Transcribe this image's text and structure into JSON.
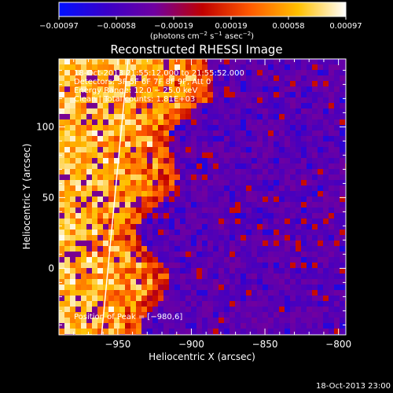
{
  "chart_data": {
    "type": "heatmap",
    "title": "Reconstructed RHESSI Image",
    "xlabel": "Heliocentric X (arcsec)",
    "ylabel": "Heliocentric Y (arcsec)",
    "xlim": [
      -990,
      -795
    ],
    "ylim": [
      -47,
      148
    ],
    "x_ticks": [
      -950,
      -900,
      -850,
      -800
    ],
    "x_tick_labels": [
      "−950",
      "−900",
      "−850",
      "−800"
    ],
    "y_ticks": [
      0,
      50,
      100
    ],
    "y_tick_labels": [
      "0",
      "50",
      "100"
    ],
    "colorbar": {
      "range": [
        -0.00097,
        0.00097
      ],
      "ticks": [
        "−0.00097",
        "−0.00058",
        "−0.00019",
        "0.00019",
        "0.00058",
        "0.00097"
      ],
      "unit_prefix": "(photons cm",
      "unit_exp1": "−2",
      "unit_mid": " s",
      "unit_exp2": "−1",
      "unit_mid2": " asec",
      "unit_exp3": "−2",
      "unit_suffix": ")",
      "colors": [
        "#0010ff",
        "#3a00c8",
        "#7000a0",
        "#c00000",
        "#ff5a00",
        "#ffc000",
        "#ffffff"
      ]
    },
    "annotations": [
      "18-Oct-2013 21:55:12.000 to 21:55:52.000",
      "Detectors: 3F 5F 6F 7F 8F 9F, Att 0",
      "Energy Range: 12.0 − 25.0 keV",
      "Clean  |  Total counts: 1.81E+03"
    ],
    "peak_label": "Position of Peak = [−980,6]",
    "peak_position": [
      -980,
      6
    ],
    "limb_line": [
      [
        -961,
        -47
      ],
      [
        -943,
        148
      ]
    ],
    "timestamp": "18-Oct-2013 23:00"
  }
}
